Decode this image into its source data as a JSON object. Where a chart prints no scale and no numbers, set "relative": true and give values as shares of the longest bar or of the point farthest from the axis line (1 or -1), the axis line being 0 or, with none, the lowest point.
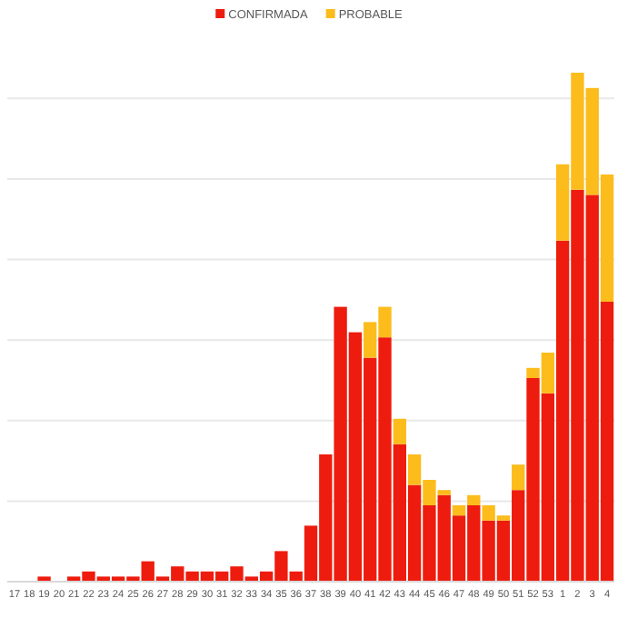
{
  "chart_data": {
    "type": "bar",
    "stacked": true,
    "relative": true,
    "grid": "y",
    "legend": "top",
    "categories": [
      "17",
      "18",
      "19",
      "20",
      "21",
      "22",
      "23",
      "24",
      "25",
      "26",
      "27",
      "28",
      "29",
      "30",
      "31",
      "32",
      "33",
      "34",
      "35",
      "36",
      "37",
      "38",
      "39",
      "40",
      "41",
      "42",
      "43",
      "44",
      "45",
      "46",
      "47",
      "48",
      "49",
      "50",
      "51",
      "52",
      "53",
      "1",
      "2",
      "3",
      "4"
    ],
    "series": [
      {
        "name": "CONFIRMADA",
        "color": "#ee1c0e",
        "values": [
          0,
          0,
          0.01,
          0,
          0.01,
          0.02,
          0.01,
          0.01,
          0.01,
          0.04,
          0.01,
          0.03,
          0.02,
          0.02,
          0.02,
          0.03,
          0.01,
          0.02,
          0.06,
          0.02,
          0.11,
          0.25,
          0.54,
          0.49,
          0.44,
          0.48,
          0.27,
          0.19,
          0.15,
          0.17,
          0.13,
          0.15,
          0.12,
          0.12,
          0.18,
          0.4,
          0.37,
          0.67,
          0.77,
          0.76,
          0.55
        ]
      },
      {
        "name": "PROBABLE",
        "color": "#fbbc1c",
        "values": [
          0,
          0,
          0,
          0,
          0,
          0,
          0,
          0,
          0,
          0,
          0,
          0,
          0,
          0,
          0,
          0,
          0,
          0,
          0,
          0,
          0,
          0,
          0,
          0,
          0.07,
          0.06,
          0.05,
          0.06,
          0.05,
          0.01,
          0.02,
          0.02,
          0.03,
          0.01,
          0.05,
          0.02,
          0.08,
          0.15,
          0.23,
          0.21,
          0.25
        ]
      }
    ]
  }
}
